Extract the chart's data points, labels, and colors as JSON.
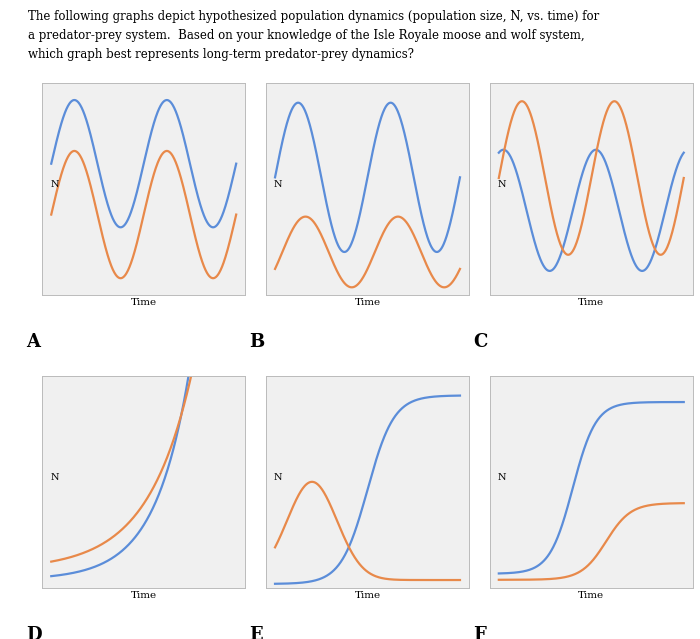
{
  "title_line1": "The following graphs depict hypothesized population dynamics (population size, N, vs. time) for",
  "title_line2": "a predator-prey system.  Based on your knowledge of the Isle Royale moose and wolf system,",
  "title_line3": "which graph best represents long-term predator-prey dynamics?",
  "blue_color": "#5B8DD9",
  "orange_color": "#E8894A",
  "bg_color": "#FFFFFF",
  "panel_bg": "#F0F0F0",
  "grid_color": "#CCCCCC",
  "label_fontsize": 7.5,
  "letter_fontsize": 13,
  "n_fontsize": 7,
  "axis_label": "N",
  "xlabel": "Time"
}
